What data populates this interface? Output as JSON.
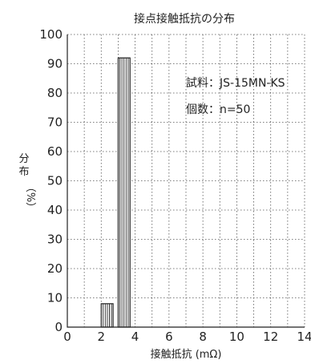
{
  "chart_data": {
    "type": "bar",
    "title": "接点接触抵抗の分布",
    "xlabel": "接触抵抗 (mΩ)",
    "ylabel": [
      "分",
      "布",
      "（%）"
    ],
    "xlim": [
      0,
      14
    ],
    "ylim": [
      0,
      100
    ],
    "xticks": [
      0,
      2,
      4,
      6,
      8,
      10,
      12,
      14
    ],
    "yticks": [
      0,
      10,
      20,
      30,
      40,
      50,
      60,
      70,
      80,
      90,
      100
    ],
    "grid": true,
    "bars": [
      {
        "x0": 2.0,
        "x1": 2.7,
        "value": 8
      },
      {
        "x0": 3.0,
        "x1": 3.7,
        "value": 92
      }
    ],
    "annotations": {
      "sample": "試料：JS-15MN-KS",
      "count": "個数：n=50"
    },
    "colors": {
      "axis": "#222222",
      "bar_fill": "#ffffff",
      "hatch": "#222222"
    }
  }
}
